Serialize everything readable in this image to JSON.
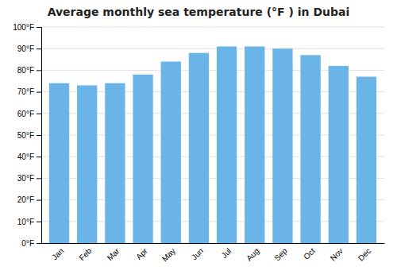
{
  "chart_data": {
    "type": "bar",
    "title": "Average monthly sea temperature (°F ) in Dubai",
    "categories": [
      "Jan",
      "Feb",
      "Mar",
      "Apr",
      "May",
      "Jun",
      "Jul",
      "Aug",
      "Sep",
      "Oct",
      "Nov",
      "Dec"
    ],
    "values": [
      74,
      73,
      74,
      78,
      84,
      88,
      91,
      91,
      90,
      87,
      82,
      77
    ],
    "color": "#6ab4e8",
    "ylim": [
      0,
      100
    ],
    "yticks": [
      {
        "value": 0,
        "label": "0°F"
      },
      {
        "value": 10,
        "label": "10°F"
      },
      {
        "value": 20,
        "label": "20°F"
      },
      {
        "value": 30,
        "label": "30°F"
      },
      {
        "value": 40,
        "label": "40°F"
      },
      {
        "value": 50,
        "label": "50°F"
      },
      {
        "value": 60,
        "label": "60°F"
      },
      {
        "value": 70,
        "label": "70°F"
      },
      {
        "value": 80,
        "label": "80°F"
      },
      {
        "value": 90,
        "label": "90°F"
      },
      {
        "value": 100,
        "label": "100°F"
      }
    ],
    "grid": true
  }
}
